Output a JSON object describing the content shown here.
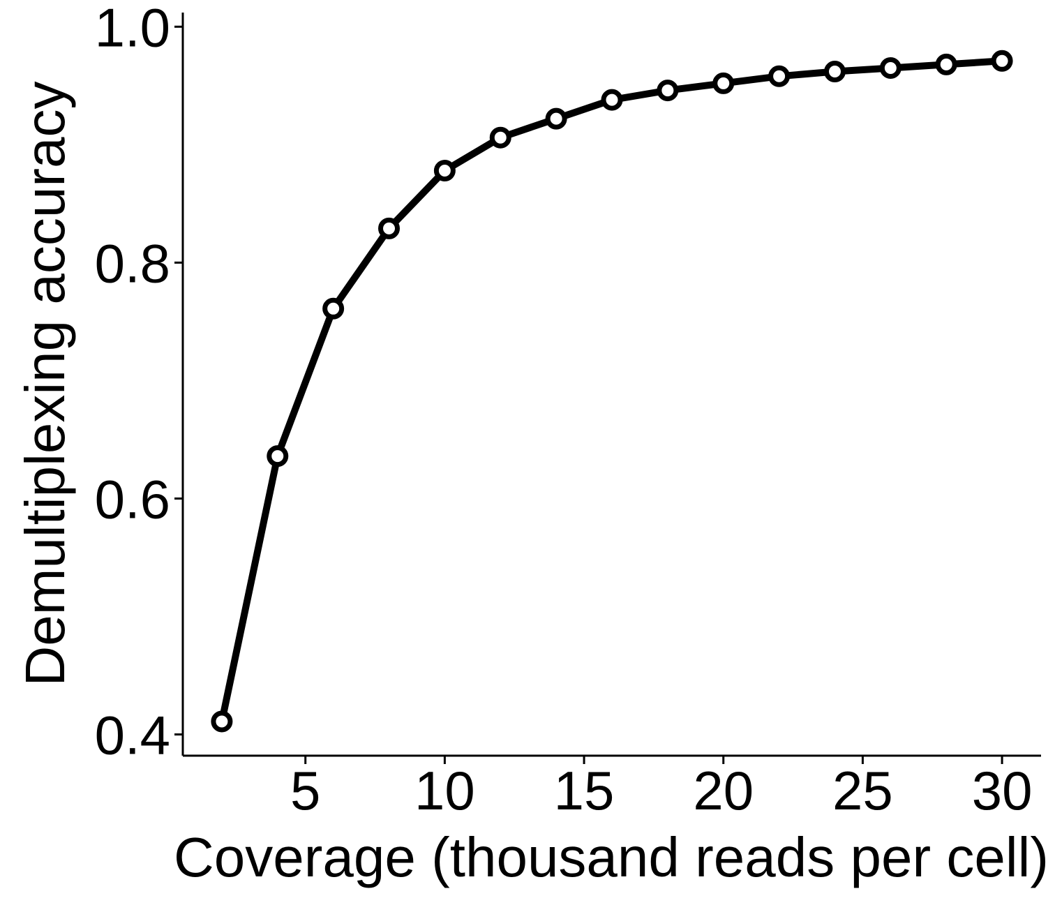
{
  "chart_data": {
    "type": "line",
    "title": "",
    "xlabel": "Coverage (thousand reads per cell)",
    "ylabel": "Demultiplexing accuracy",
    "xlim": [
      0.6,
      31.4
    ],
    "ylim": [
      0.382,
      1.012
    ],
    "x_ticks": [
      5,
      10,
      15,
      20,
      25,
      30
    ],
    "y_ticks": [
      0.4,
      0.6,
      0.8,
      1.0
    ],
    "x_tick_labels": [
      "5",
      "10",
      "15",
      "20",
      "25",
      "30"
    ],
    "y_tick_labels": [
      "0.4",
      "0.6",
      "0.8",
      "1.0"
    ],
    "grid": false,
    "series": [
      {
        "x": [
          2,
          4,
          6,
          8,
          10,
          12,
          14,
          16,
          18,
          20,
          22,
          24,
          26,
          28,
          30
        ],
        "y": [
          0.411,
          0.636,
          0.761,
          0.829,
          0.878,
          0.906,
          0.922,
          0.938,
          0.946,
          0.952,
          0.958,
          0.962,
          0.965,
          0.968,
          0.971
        ],
        "color": "#000000",
        "marker": "circle-open"
      }
    ]
  }
}
